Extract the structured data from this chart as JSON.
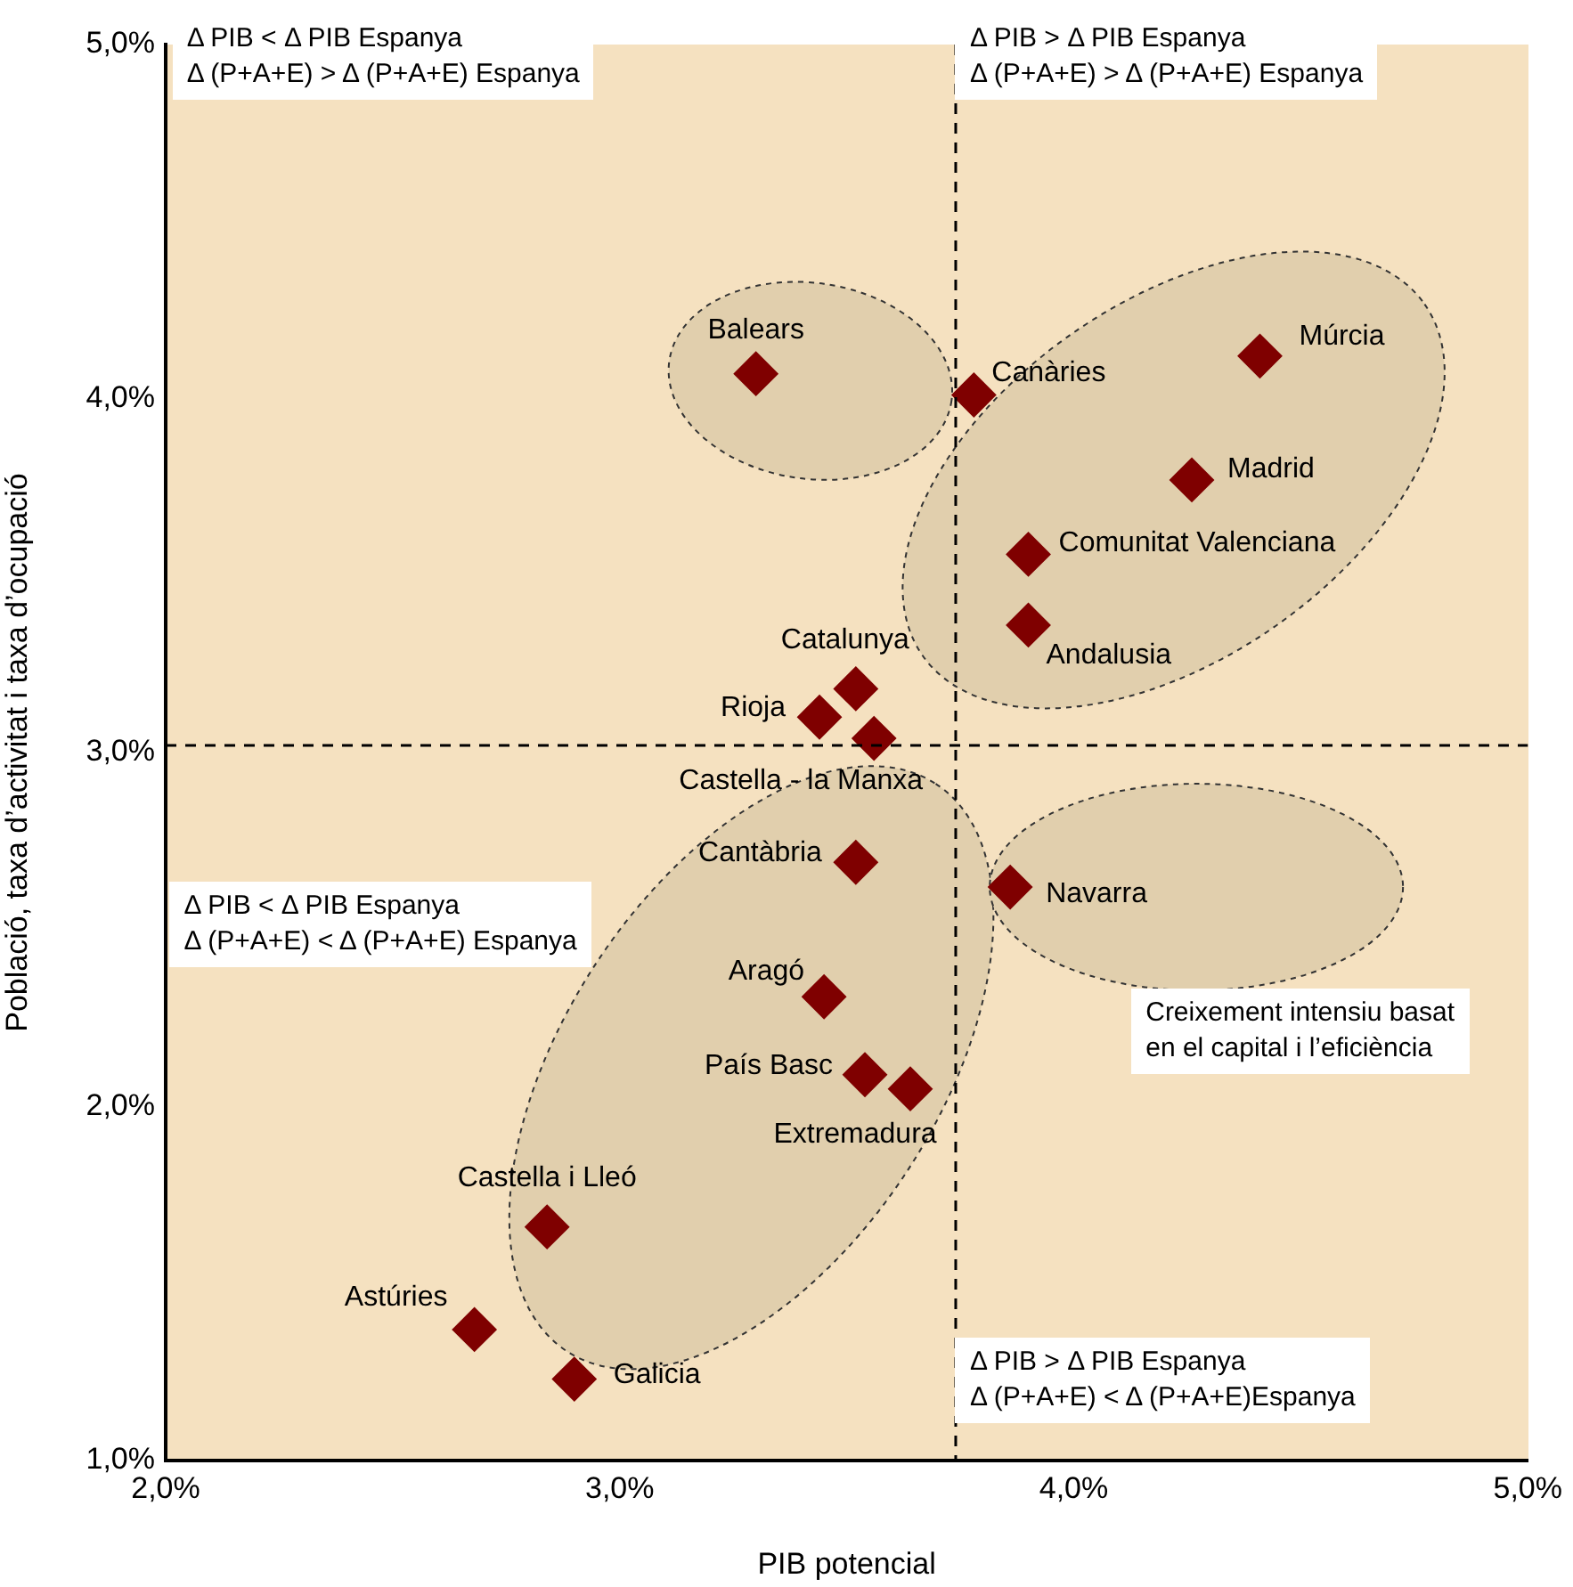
{
  "chart_data": {
    "type": "scatter",
    "xlabel": "PIB potencial",
    "ylabel": "Població, taxa d’activitat i taxa d’ocupació",
    "x": [
      3.3,
      3.78,
      4.41,
      4.26,
      3.9,
      3.9,
      3.52,
      3.44,
      3.56,
      3.52,
      3.86,
      3.45,
      3.54,
      3.64,
      2.84,
      2.68,
      2.9
    ],
    "series": [
      {
        "color": "#7f0000",
        "values": [
          4.07,
          4.01,
          4.12,
          3.77,
          3.56,
          3.36,
          3.18,
          3.1,
          3.04,
          2.69,
          2.62,
          2.31,
          2.09,
          2.05,
          1.66,
          1.37,
          1.23
        ],
        "value_labels": [
          "Balears",
          "Canàries",
          "Múrcia",
          "Madrid",
          "Comunitat Valenciana",
          "Andalusia",
          "Catalunya",
          "Rioja",
          "Castella - la Manxa",
          "Cantàbria",
          "Navarra",
          "Aragó",
          "País Basc",
          "Extremadura",
          "Castella i Lleó",
          "Astúries",
          "Galicia"
        ]
      }
    ],
    "marker": "diamond",
    "grid": false,
    "legend": false,
    "xlim": [
      2,
      5
    ],
    "ylim": [
      1,
      5
    ],
    "xticks": [
      {
        "value": 2,
        "label": "2,0%"
      },
      {
        "value": 3,
        "label": "3,0%"
      },
      {
        "value": 4,
        "label": "4,0%"
      },
      {
        "value": 5,
        "label": "5,0%"
      }
    ],
    "yticks": [
      {
        "value": 1,
        "label": "1,0%"
      },
      {
        "value": 2,
        "label": "2,0%"
      },
      {
        "value": 3,
        "label": "3,0%"
      },
      {
        "value": 4,
        "label": "4,0%"
      },
      {
        "value": 5,
        "label": "5,0%"
      }
    ],
    "ref_lines": [
      {
        "axis": "x",
        "value": 3.74,
        "color": "#000000",
        "line_style": "dashed"
      },
      {
        "axis": "y",
        "value": 3.02,
        "color": "#000000",
        "line_style": "dashed"
      }
    ],
    "annotations": [
      "Δ PIB < Δ PIB Espanya\nΔ (P+A+E) > Δ (P+A+E) Espanya",
      "Δ PIB > Δ PIB Espanya\nΔ (P+A+E) > Δ (P+A+E) Espanya",
      "Δ PIB < Δ PIB Espanya\nΔ (P+A+E) < Δ (P+A+E) Espanya",
      "Creixement intensiu basat\nen el capital i l’eficiència",
      "Δ PIB > Δ PIB Espanya\nΔ (P+A+E) < Δ (P+A+E)Espanya"
    ]
  }
}
